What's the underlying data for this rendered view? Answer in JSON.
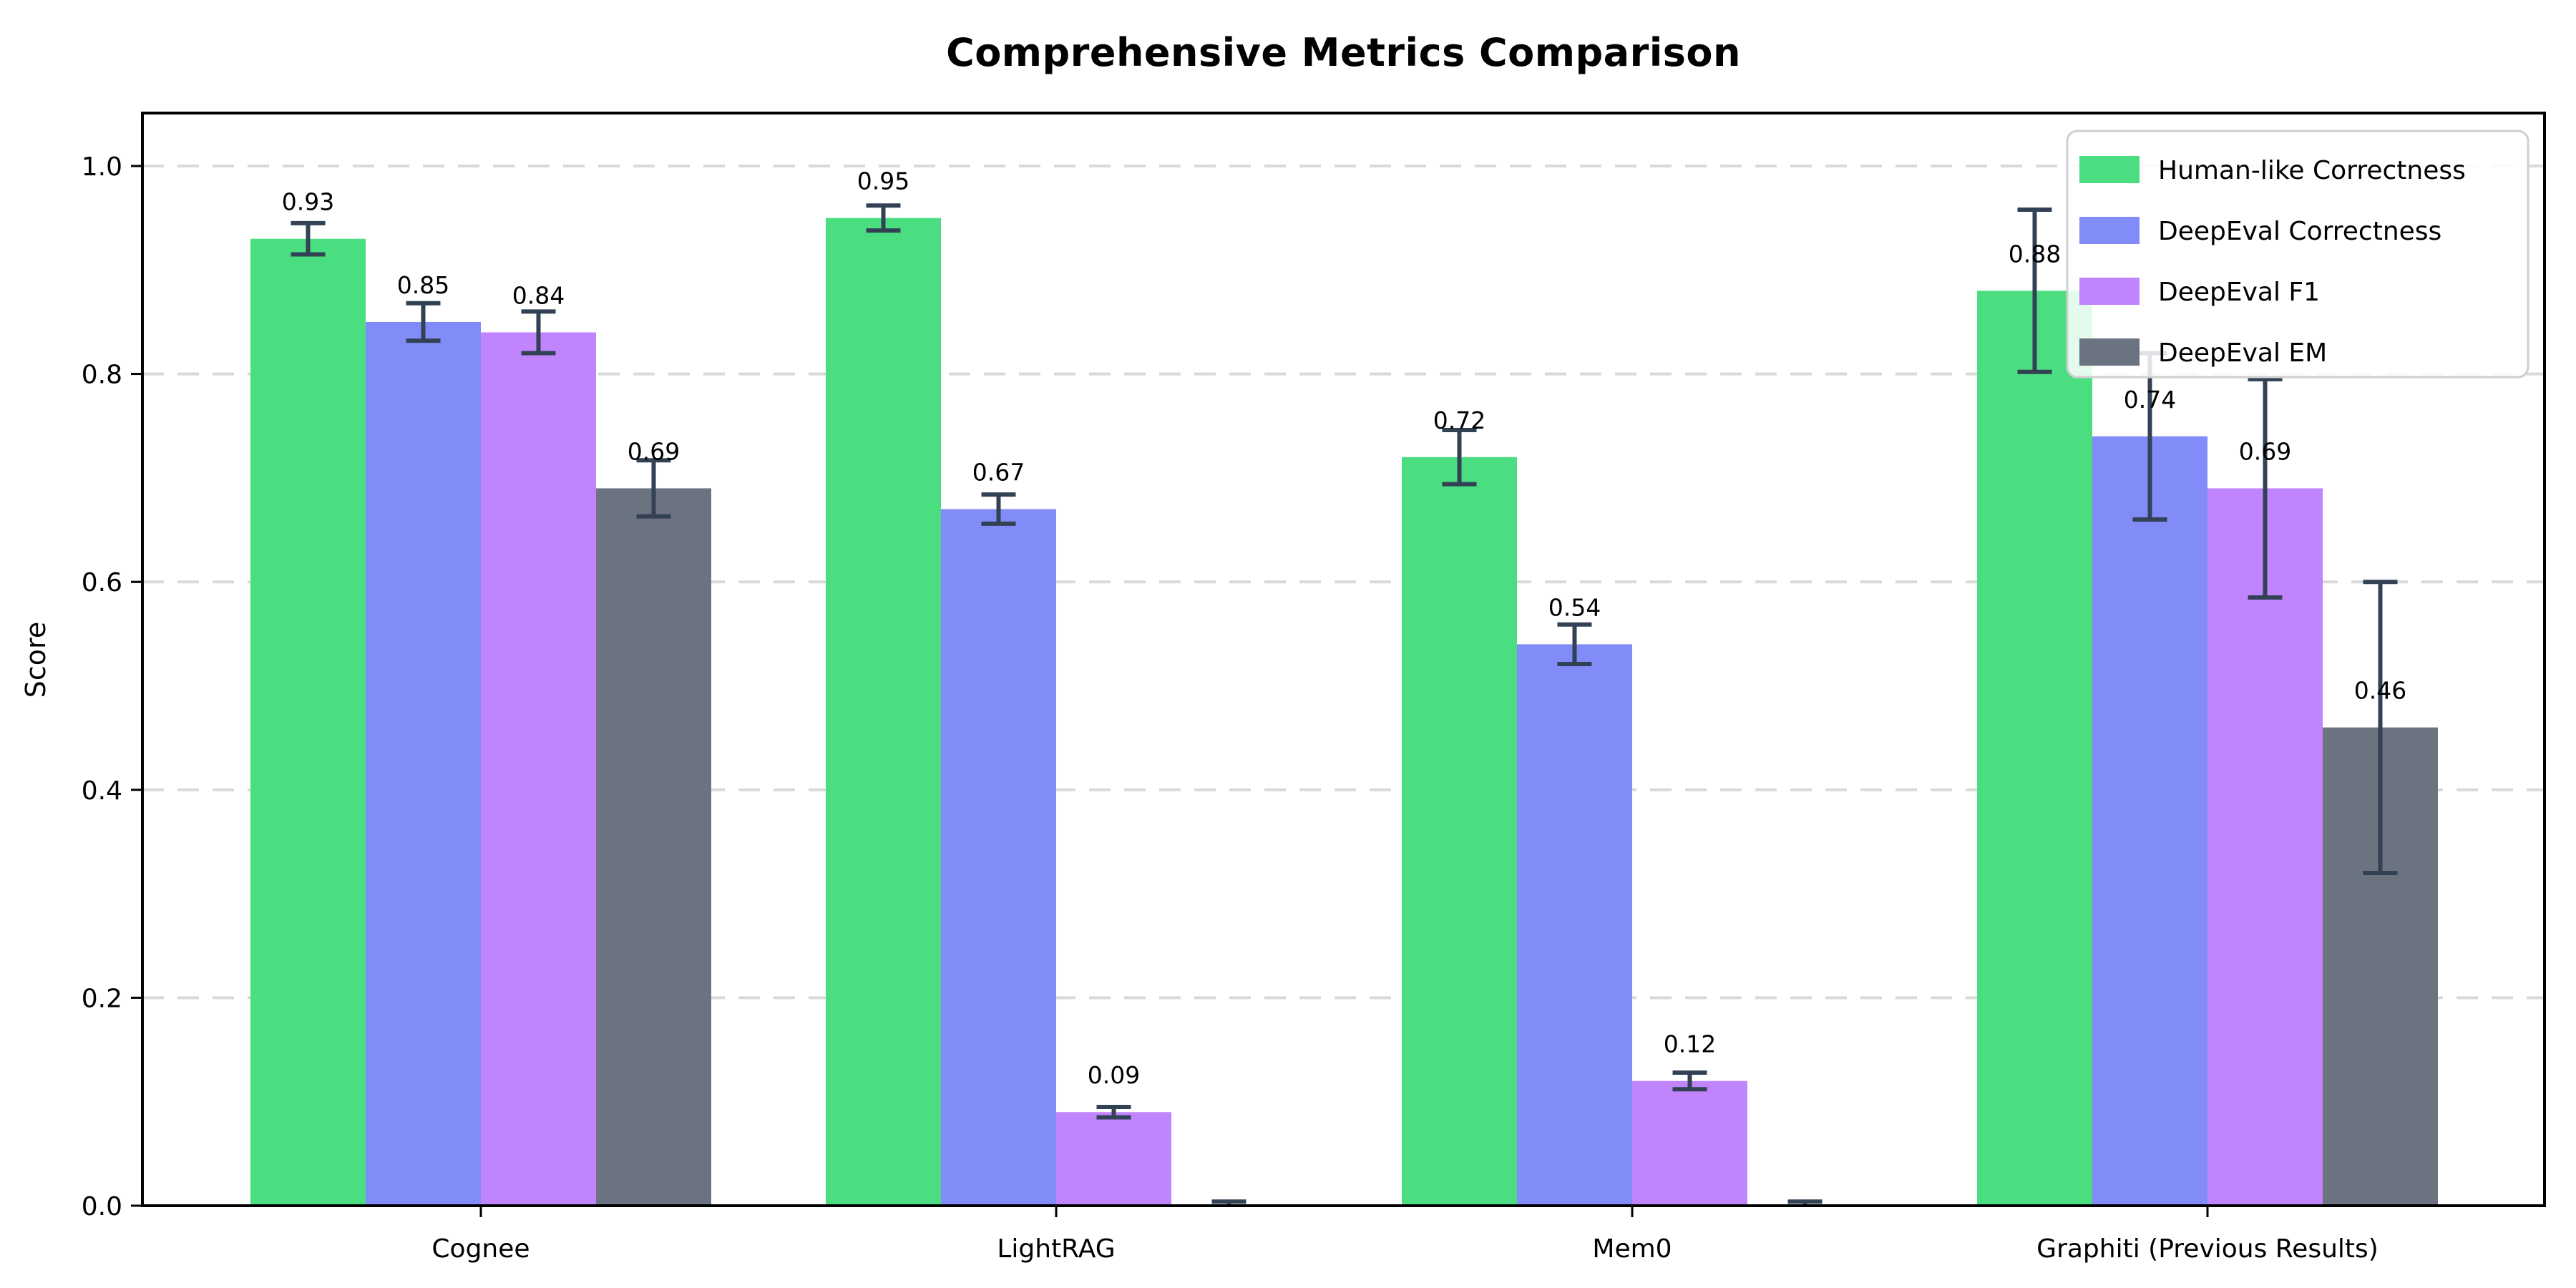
{
  "chart_data": {
    "type": "bar",
    "title": "Comprehensive Metrics Comparison",
    "xlabel": "",
    "ylabel": "Score",
    "categories": [
      "Cognee",
      "LightRAG",
      "Mem0",
      "Graphiti (Previous Results)"
    ],
    "series": [
      {
        "name": "Human-like Correctness",
        "color": "#4ade80",
        "values": [
          0.93,
          0.95,
          0.72,
          0.88
        ],
        "errors": [
          0.015,
          0.012,
          0.026,
          0.078
        ],
        "bar_labels": [
          "0.93",
          "0.95",
          "0.72",
          "0.88"
        ]
      },
      {
        "name": "DeepEval Correctness",
        "color": "#818cf8",
        "values": [
          0.85,
          0.67,
          0.54,
          0.74
        ],
        "errors": [
          0.018,
          0.014,
          0.019,
          0.08
        ],
        "bar_labels": [
          "0.85",
          "0.67",
          "0.54",
          "0.74"
        ]
      },
      {
        "name": "DeepEval F1",
        "color": "#c084fc",
        "values": [
          0.84,
          0.09,
          0.12,
          0.69
        ],
        "errors": [
          0.02,
          0.005,
          0.008,
          0.105
        ],
        "bar_labels": [
          "0.84",
          "0.09",
          "0.12",
          "0.69"
        ]
      },
      {
        "name": "DeepEval EM",
        "color": "#6b7280",
        "values": [
          0.69,
          0.0,
          0.0,
          0.46
        ],
        "errors": [
          0.027,
          0.004,
          0.004,
          0.14
        ],
        "bar_labels": [
          "0.69",
          null,
          null,
          "0.46"
        ]
      }
    ],
    "yticks": [
      0.0,
      0.2,
      0.4,
      0.6,
      0.8,
      1.0
    ],
    "ytick_labels": [
      "0.0",
      "0.2",
      "0.4",
      "0.6",
      "0.8",
      "1.0"
    ],
    "ylim": [
      0,
      1.05
    ],
    "grid": "horizontal-dashed",
    "legend_position": "upper-right",
    "colors": {
      "error_bar": "#334155",
      "grid_line": "#d9d9d9",
      "spine": "#000000",
      "text": "#000000",
      "legend_border": "#cfcfcf",
      "legend_background": "rgba(255,255,255,0.85)",
      "background": "#ffffff"
    }
  }
}
